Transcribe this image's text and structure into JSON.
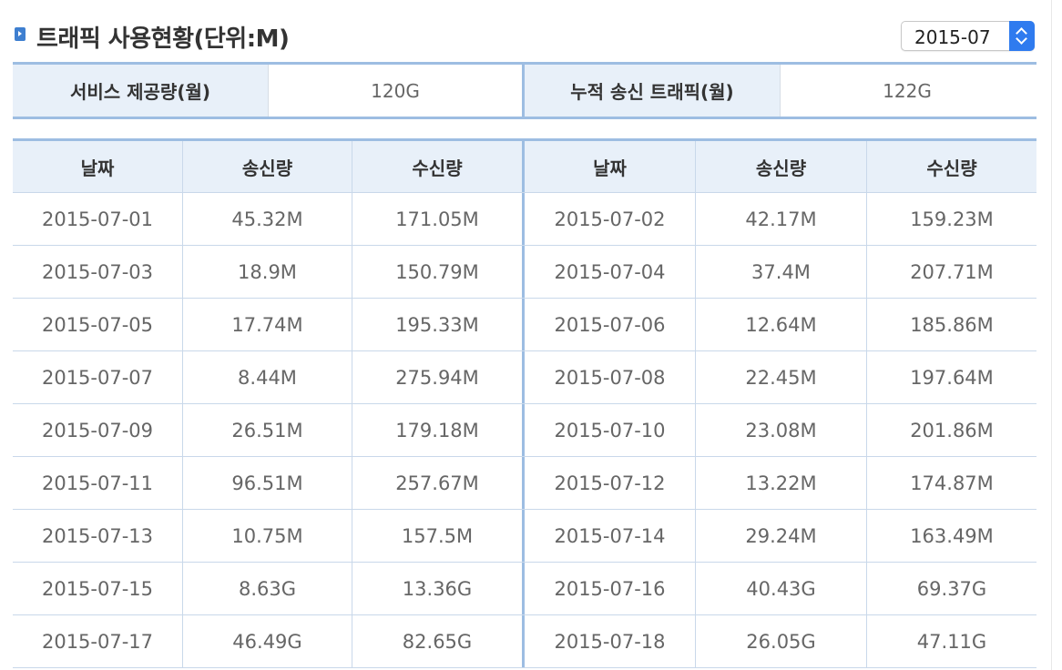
{
  "header": {
    "title": "트래픽 사용현황(단위:M)",
    "month_select": "2015-07"
  },
  "summary": {
    "service_label": "서비스 제공량(월)",
    "service_value": "120G",
    "sent_label": "누적 송신 트래픽(월)",
    "sent_value": "122G"
  },
  "table": {
    "headers": [
      "날짜",
      "송신량",
      "수신량",
      "날짜",
      "송신량",
      "수신량"
    ],
    "rows": [
      [
        "2015-07-01",
        "45.32M",
        "171.05M",
        "2015-07-02",
        "42.17M",
        "159.23M"
      ],
      [
        "2015-07-03",
        "18.9M",
        "150.79M",
        "2015-07-04",
        "37.4M",
        "207.71M"
      ],
      [
        "2015-07-05",
        "17.74M",
        "195.33M",
        "2015-07-06",
        "12.64M",
        "185.86M"
      ],
      [
        "2015-07-07",
        "8.44M",
        "275.94M",
        "2015-07-08",
        "22.45M",
        "197.64M"
      ],
      [
        "2015-07-09",
        "26.51M",
        "179.18M",
        "2015-07-10",
        "23.08M",
        "201.86M"
      ],
      [
        "2015-07-11",
        "96.51M",
        "257.67M",
        "2015-07-12",
        "13.22M",
        "174.87M"
      ],
      [
        "2015-07-13",
        "10.75M",
        "157.5M",
        "2015-07-14",
        "29.24M",
        "163.49M"
      ],
      [
        "2015-07-15",
        "8.63G",
        "13.36G",
        "2015-07-16",
        "40.43G",
        "69.37G"
      ],
      [
        "2015-07-17",
        "46.49G",
        "82.65G",
        "2015-07-18",
        "26.05G",
        "47.11G"
      ]
    ]
  },
  "colors": {
    "accent": "#9dbde2",
    "header_bg": "#e8f0f9",
    "select_button": "#2f7bef",
    "title_icon": "#3e7fd0"
  },
  "icons": {
    "title_icon": "arrow-bullet-icon",
    "select_icon": "up-down-chevron-icon"
  }
}
